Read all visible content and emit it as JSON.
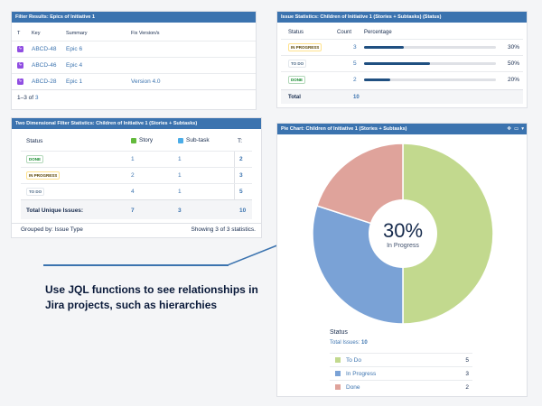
{
  "filter_results": {
    "title": "Filter Results: Epics of Initiative 1",
    "columns": {
      "t": "T",
      "key": "Key",
      "summary": "Summary",
      "fix": "Fix Version/s"
    },
    "rows": [
      {
        "key": "ABCD-48",
        "summary": "Epic 6",
        "fix": ""
      },
      {
        "key": "ABCD-46",
        "summary": "Epic 4",
        "fix": ""
      },
      {
        "key": "ABCD-28",
        "summary": "Epic 1",
        "fix": "Version 4.0"
      }
    ],
    "pager_range": "1–3",
    "pager_of": " of ",
    "pager_total": "3"
  },
  "issue_statistics": {
    "title": "Issue Statistics: Children of Initiative 1 (Stories + Subtasks) (Status)",
    "columns": {
      "status": "Status",
      "count": "Count",
      "percentage": "Percentage"
    },
    "rows": [
      {
        "status": "IN PROGRESS",
        "count": "3",
        "pct": "30%",
        "fraction": 0.3,
        "style": "progress"
      },
      {
        "status": "TO DO",
        "count": "5",
        "pct": "50%",
        "fraction": 0.5,
        "style": "todo"
      },
      {
        "status": "DONE",
        "count": "2",
        "pct": "20%",
        "fraction": 0.2,
        "style": "done"
      }
    ],
    "total_label": "Total",
    "total_value": "10"
  },
  "two_dim": {
    "title": "Two Dimensional Filter Statistics: Children of Initiative 1 (Stories + Subtasks)",
    "columns": {
      "status": "Status",
      "story": "Story",
      "subtask": "Sub-task",
      "t": "T:"
    },
    "rows": [
      {
        "status": "DONE",
        "style": "done",
        "story": "1",
        "subtask": "1",
        "t": "2"
      },
      {
        "status": "IN PROGRESS",
        "style": "progress",
        "story": "2",
        "subtask": "1",
        "t": "3"
      },
      {
        "status": "TO DO",
        "style": "todo",
        "story": "4",
        "subtask": "1",
        "t": "5"
      }
    ],
    "total": {
      "label": "Total Unique Issues:",
      "story": "7",
      "subtask": "3",
      "t": "10"
    },
    "grouped_by": "Grouped by: Issue Type",
    "showing": "Showing 3 of 3 statistics."
  },
  "caption": {
    "line1": "Use JQL functions to see relationships in",
    "line2": "Jira projects, such as hierarchies"
  },
  "pie_chart": {
    "title": "Pie Chart: Children of Initiative 1 (Stories + Subtasks)",
    "center_value": "30%",
    "center_label": "In Progress",
    "legend_title": "Status",
    "total_label": "Total Issues: ",
    "total_value": "10",
    "colors": {
      "todo": "#c2d98e",
      "progress": "#7aa2d6",
      "done": "#dfa39b"
    },
    "icons": [
      "move-icon",
      "minimize-icon",
      "menu-icon"
    ]
  },
  "chart_data": {
    "type": "pie",
    "categories": [
      "To Do",
      "In Progress",
      "Done"
    ],
    "values": [
      5,
      3,
      2
    ],
    "title": "Pie Chart: Children of Initiative 1 (Stories + Subtasks)"
  }
}
